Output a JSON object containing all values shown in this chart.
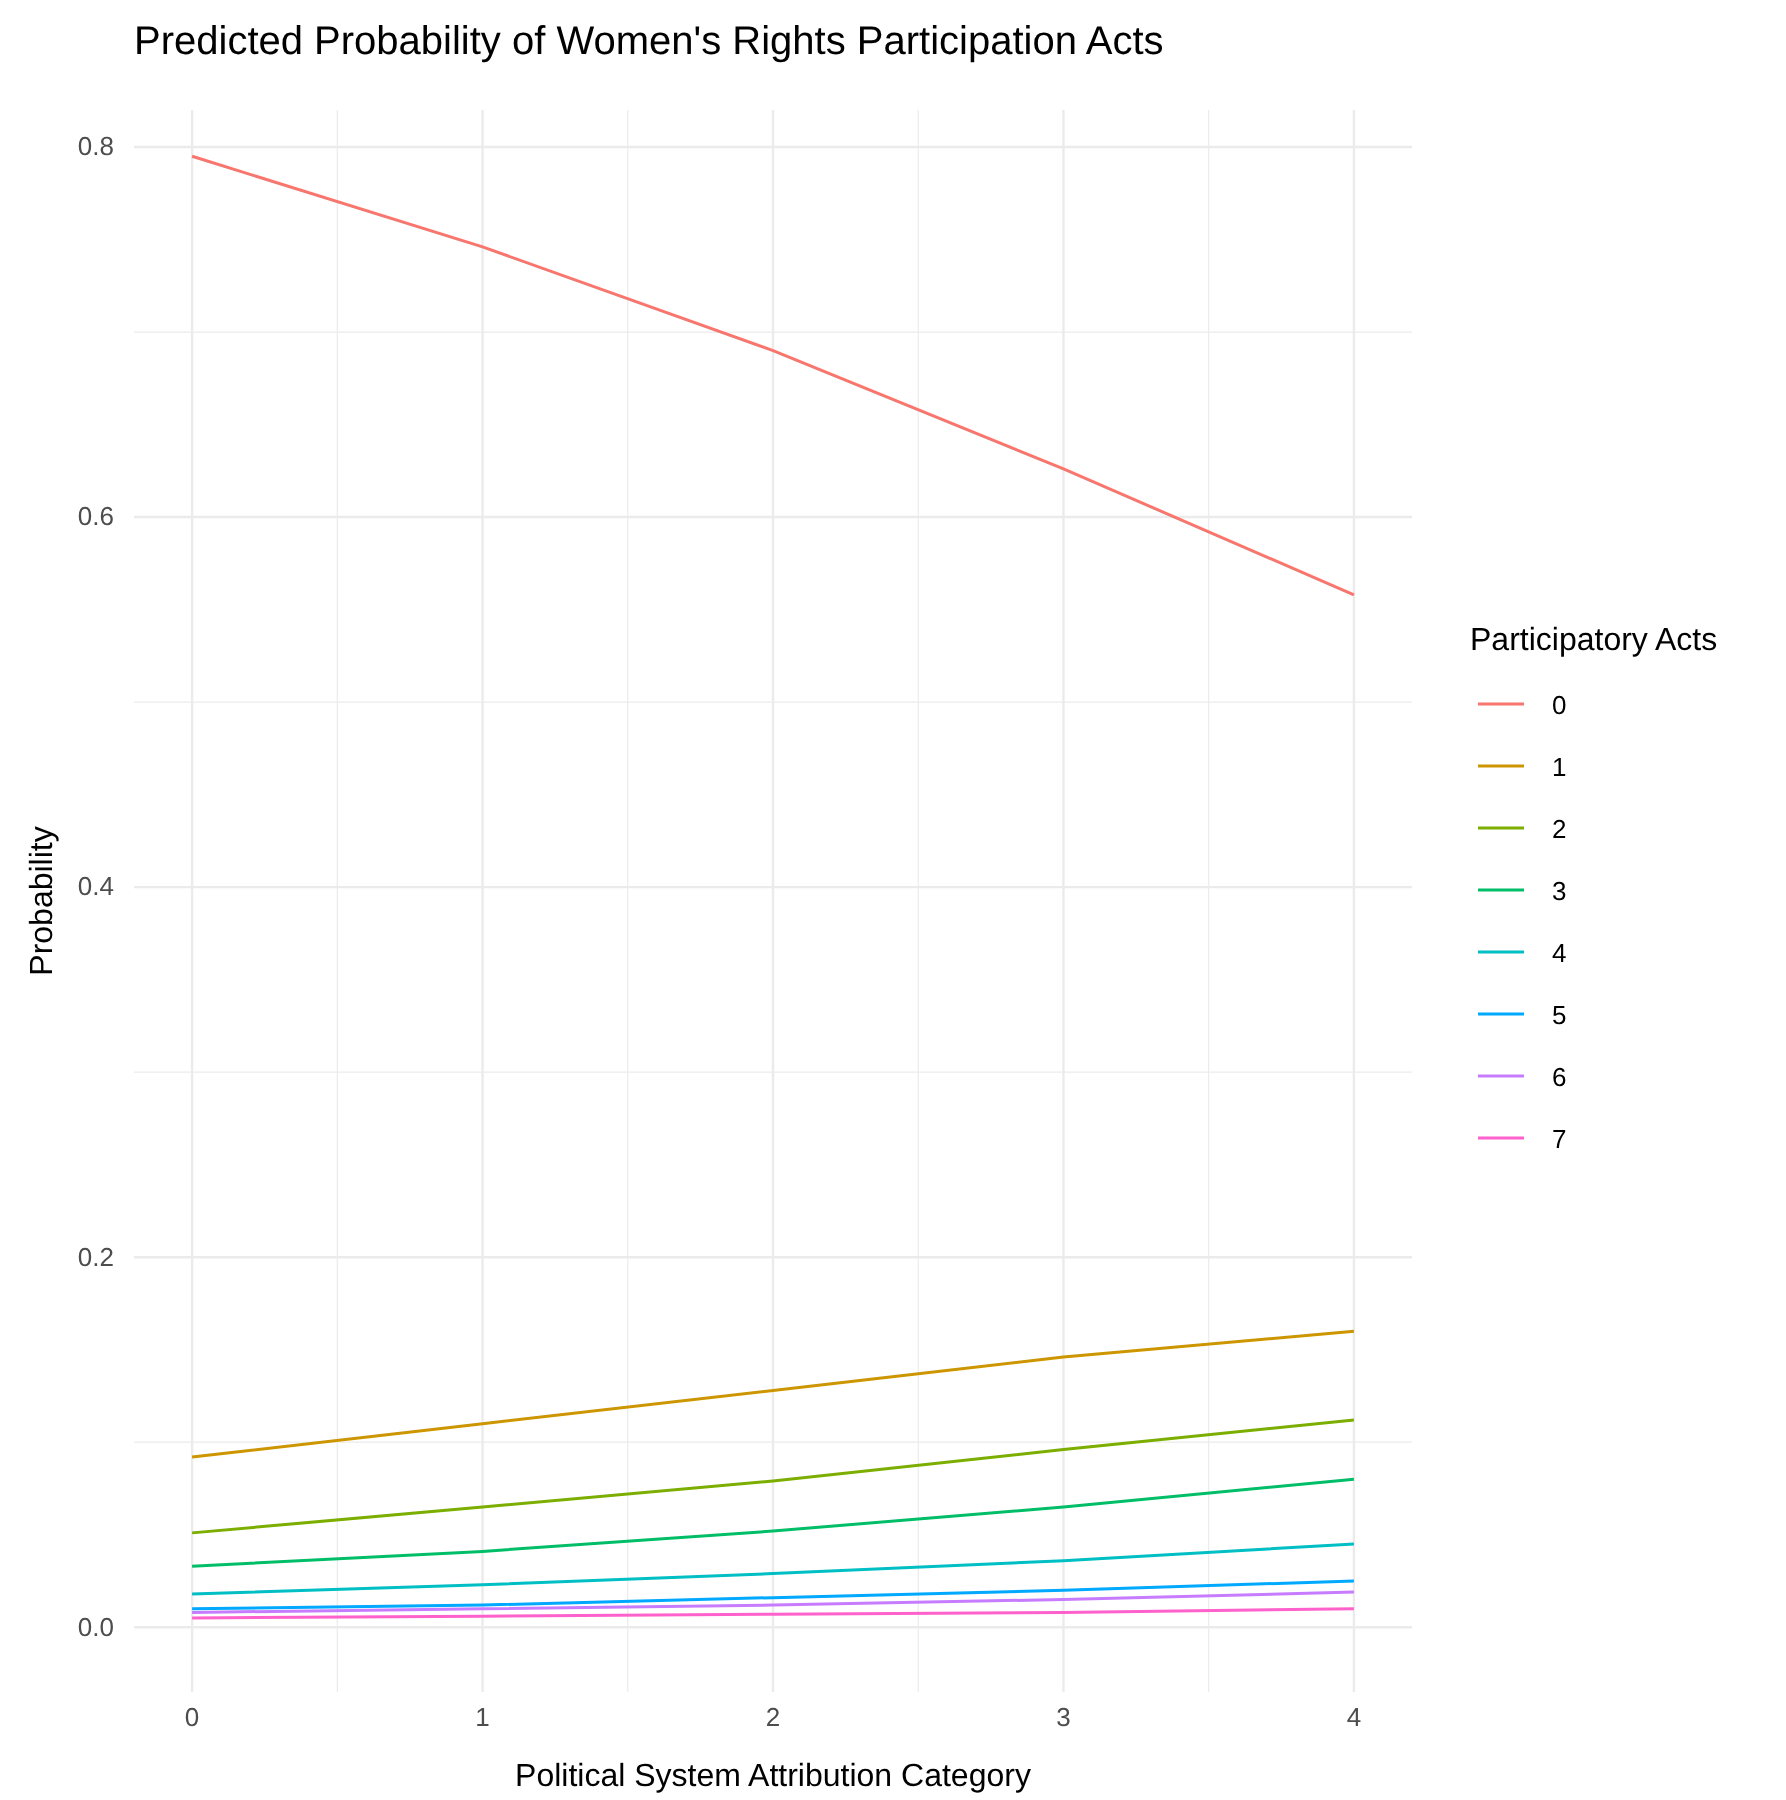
{
  "chart_data": {
    "type": "line",
    "title": "Predicted Probability of Women's Rights Participation Acts",
    "xlabel": "Political System Attribution Category",
    "ylabel": "Probability",
    "legend_title": "Participatory Acts",
    "x": [
      0,
      1,
      2,
      3,
      4
    ],
    "series": [
      {
        "name": "0",
        "color": "#f8766d",
        "values": [
          0.795,
          0.746,
          0.69,
          0.626,
          0.558
        ]
      },
      {
        "name": "1",
        "color": "#cd9600",
        "values": [
          0.092,
          0.11,
          0.128,
          0.146,
          0.16
        ]
      },
      {
        "name": "2",
        "color": "#7cae00",
        "values": [
          0.051,
          0.065,
          0.079,
          0.096,
          0.112
        ]
      },
      {
        "name": "3",
        "color": "#00be67",
        "values": [
          0.033,
          0.041,
          0.052,
          0.065,
          0.08
        ]
      },
      {
        "name": "4",
        "color": "#00bfc4",
        "values": [
          0.018,
          0.023,
          0.029,
          0.036,
          0.045
        ]
      },
      {
        "name": "5",
        "color": "#00a9ff",
        "values": [
          0.01,
          0.012,
          0.016,
          0.02,
          0.025
        ]
      },
      {
        "name": "6",
        "color": "#c77cff",
        "values": [
          0.008,
          0.01,
          0.012,
          0.015,
          0.019
        ]
      },
      {
        "name": "7",
        "color": "#ff61cc",
        "values": [
          0.005,
          0.006,
          0.007,
          0.008,
          0.01
        ]
      }
    ],
    "xlim": [
      -0.2,
      4.2
    ],
    "ylim": [
      -0.035,
      0.82
    ],
    "xticks": [
      0,
      {
        "value": 0.5,
        "label": null
      },
      1,
      {
        "value": 1.5,
        "label": null
      },
      2,
      {
        "value": 2.5,
        "label": null
      },
      3,
      {
        "value": 3.5,
        "label": null
      },
      4
    ],
    "yticks": [
      {
        "value": 0,
        "label": "0.0"
      },
      {
        "value": 0.1,
        "label": null
      },
      0.2,
      {
        "value": 0.3,
        "label": null
      },
      0.4,
      {
        "value": 0.5,
        "label": null
      },
      0.6,
      {
        "value": 0.7,
        "label": null
      },
      0.8
    ],
    "grid": true,
    "legend": "right",
    "marker": "none",
    "line_style": "solid"
  }
}
